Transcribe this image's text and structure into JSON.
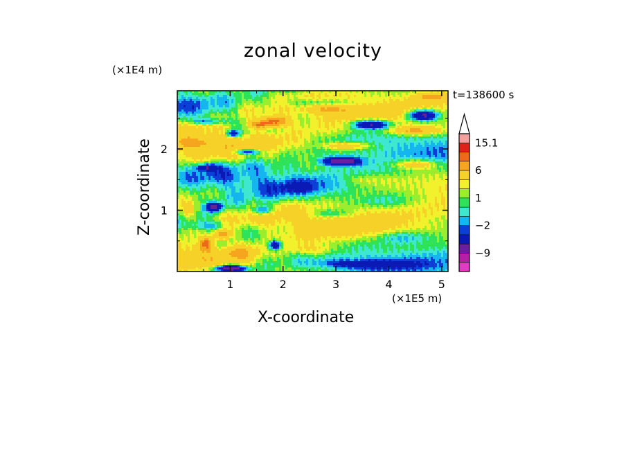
{
  "chart_data": {
    "type": "heatmap",
    "title": "zonal velocity",
    "xlabel": "X-coordinate",
    "ylabel": "Z-coordinate",
    "x_unit": "(×1E5 m)",
    "y_unit": "(×1E4 m)",
    "annotation": "t=138600 s",
    "xlim": [
      0,
      5.12
    ],
    "ylim": [
      0,
      2.95
    ],
    "x_ticks": [
      {
        "value": 1,
        "label": "1"
      },
      {
        "value": 2,
        "label": "2"
      },
      {
        "value": 3,
        "label": "3"
      },
      {
        "value": 4,
        "label": "4"
      },
      {
        "value": 5,
        "label": "5"
      }
    ],
    "y_ticks": [
      {
        "value": 1,
        "label": "1"
      },
      {
        "value": 2,
        "label": "2"
      }
    ],
    "colorbar": {
      "levels": [
        -15,
        -12,
        -9,
        -6,
        -3,
        -2,
        -1,
        0,
        1,
        2,
        3,
        6,
        9,
        12,
        15.1,
        18
      ],
      "colors": [
        "#e23ac0",
        "#b41fa6",
        "#6b1f9c",
        "#0b1ab5",
        "#0b3fd8",
        "#15b6f0",
        "#3ee8d0",
        "#2ee25a",
        "#9aee2e",
        "#f2f22c",
        "#f6d228",
        "#f5a51e",
        "#ee6a1a",
        "#e0201a",
        "#f2a0a0"
      ],
      "tick_labels": [
        {
          "value": 15.1,
          "label": "15.1"
        },
        {
          "value": 6,
          "label": "6"
        },
        {
          "value": 1,
          "label": "1"
        },
        {
          "value": -2,
          "label": "−2"
        },
        {
          "value": -9,
          "label": "−9"
        }
      ],
      "extends_max": true
    },
    "features": [
      {
        "x": 4.65,
        "z": 2.55,
        "sx": 0.3,
        "sz": 0.09,
        "v": -10
      },
      {
        "x": 3.65,
        "z": 2.4,
        "sx": 0.35,
        "sz": 0.08,
        "v": -9
      },
      {
        "x": 3.1,
        "z": 1.8,
        "sx": 0.35,
        "sz": 0.07,
        "v": -10
      },
      {
        "x": 1.6,
        "z": 1.0,
        "sx": 0.18,
        "sz": 0.08,
        "v": -6
      },
      {
        "x": 1.85,
        "z": 0.43,
        "sx": 0.12,
        "sz": 0.08,
        "v": -9
      },
      {
        "x": 0.7,
        "z": 1.05,
        "sx": 0.15,
        "sz": 0.08,
        "v": -8
      },
      {
        "x": 1.05,
        "z": 2.25,
        "sx": 0.12,
        "sz": 0.05,
        "v": -7
      },
      {
        "x": 1.3,
        "z": 1.95,
        "sx": 0.3,
        "sz": 0.05,
        "v": -6
      },
      {
        "x": 0.55,
        "z": 1.7,
        "sx": 0.2,
        "sz": 0.05,
        "v": -6
      },
      {
        "x": 0.6,
        "z": 2.45,
        "sx": 0.35,
        "sz": 0.05,
        "v": -4
      },
      {
        "x": 0.6,
        "z": 0.75,
        "sx": 0.3,
        "sz": 0.07,
        "v": -3
      },
      {
        "x": 2.9,
        "z": 0.95,
        "sx": 0.35,
        "sz": 0.07,
        "v": -3
      },
      {
        "x": 4.3,
        "z": 0.55,
        "sx": 0.5,
        "sz": 0.1,
        "v": -3
      },
      {
        "x": 3.5,
        "z": 0.12,
        "sx": 0.9,
        "sz": 0.07,
        "v": -4
      },
      {
        "x": 1.0,
        "z": 0.05,
        "sx": 0.3,
        "sz": 0.05,
        "v": -10
      },
      {
        "x": 2.6,
        "z": 2.75,
        "sx": 0.8,
        "sz": 0.08,
        "v": -3
      },
      {
        "x": 1.85,
        "z": 2.45,
        "sx": 0.25,
        "sz": 0.08,
        "v": 9
      },
      {
        "x": 1.55,
        "z": 2.4,
        "sx": 0.2,
        "sz": 0.06,
        "v": 7
      },
      {
        "x": 0.55,
        "z": 0.45,
        "sx": 0.12,
        "sz": 0.1,
        "v": 9
      },
      {
        "x": 0.85,
        "z": 0.6,
        "sx": 0.15,
        "sz": 0.08,
        "v": 7
      },
      {
        "x": 4.5,
        "z": 2.3,
        "sx": 0.45,
        "sz": 0.07,
        "v": 6
      },
      {
        "x": 4.5,
        "z": 1.75,
        "sx": 0.4,
        "sz": 0.08,
        "v": 5
      },
      {
        "x": 3.2,
        "z": 2.05,
        "sx": 0.45,
        "sz": 0.06,
        "v": 5
      },
      {
        "x": 2.9,
        "z": 2.65,
        "sx": 0.4,
        "sz": 0.07,
        "v": 4
      },
      {
        "x": 4.8,
        "z": 2.85,
        "sx": 0.3,
        "sz": 0.06,
        "v": 5
      },
      {
        "x": 0.3,
        "z": 2.1,
        "sx": 0.3,
        "sz": 0.07,
        "v": 4
      },
      {
        "x": 2.6,
        "z": 0.35,
        "sx": 0.5,
        "sz": 0.1,
        "v": 3
      },
      {
        "x": 3.5,
        "z": 1.5,
        "sx": 0.5,
        "sz": 0.1,
        "v": 2
      },
      {
        "x": 1.2,
        "z": 0.3,
        "sx": 0.25,
        "sz": 0.1,
        "v": 3
      },
      {
        "x": 0.2,
        "z": 1.0,
        "sx": 0.2,
        "sz": 0.15,
        "v": 4
      },
      {
        "x": 4.0,
        "z": 1.15,
        "sx": 0.5,
        "sz": 0.1,
        "v": -1.5
      },
      {
        "x": 2.3,
        "z": 1.35,
        "sx": 0.4,
        "sz": 0.1,
        "v": -1.5
      }
    ]
  }
}
